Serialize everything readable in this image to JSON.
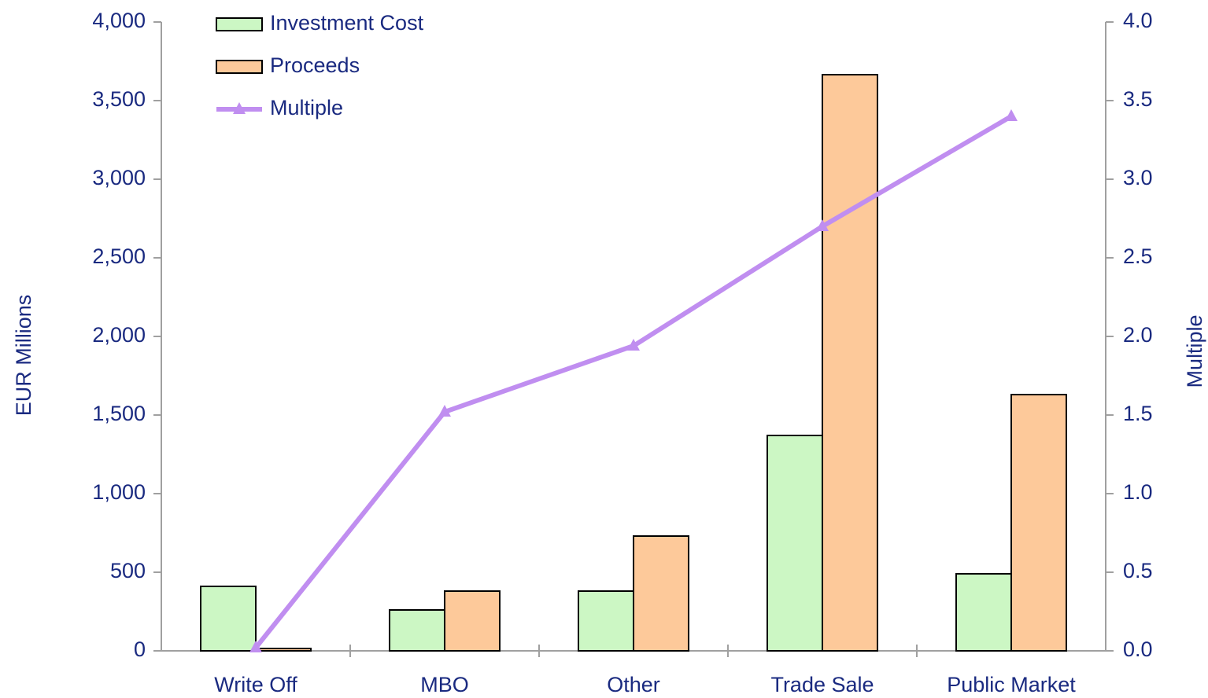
{
  "chart_data": {
    "type": "bar",
    "categories": [
      "Write Off",
      "MBO",
      "Other",
      "Trade Sale",
      "Public Market"
    ],
    "series": [
      {
        "name": "Investment Cost",
        "color": "#ccf7c4",
        "values": [
          410,
          260,
          380,
          1370,
          490
        ]
      },
      {
        "name": "Proceeds",
        "color": "#fdc99a",
        "values": [
          15,
          380,
          730,
          3665,
          1630
        ]
      },
      {
        "name": "Multiple",
        "color": "#c08ef0",
        "type": "line",
        "axis": "y2",
        "values": [
          0.02,
          1.52,
          1.94,
          2.7,
          3.4
        ]
      }
    ],
    "ylabel": "EUR Millions",
    "y2label": "Multiple",
    "ylim": [
      0,
      4000
    ],
    "yticks": [
      0,
      500,
      {
        "value": 1000,
        "label": "1,000"
      },
      {
        "value": 1500,
        "label": "1,500"
      },
      {
        "value": 2000,
        "label": "2,000"
      },
      {
        "value": 2500,
        "label": "2,500"
      },
      {
        "value": 3000,
        "label": "3,000"
      },
      {
        "value": 3500,
        "label": "3,500"
      },
      {
        "value": 4000,
        "label": "4,000"
      }
    ],
    "y2lim": [
      0,
      4
    ],
    "y2ticks": [
      {
        "value": 0,
        "label": "0.0"
      },
      0.5,
      {
        "value": 1,
        "label": "1.0"
      },
      1.5,
      {
        "value": 2,
        "label": "2.0"
      },
      2.5,
      {
        "value": 3,
        "label": "3.0"
      },
      3.5,
      {
        "value": 4,
        "label": "4.0"
      }
    ],
    "legend": "upper left"
  }
}
